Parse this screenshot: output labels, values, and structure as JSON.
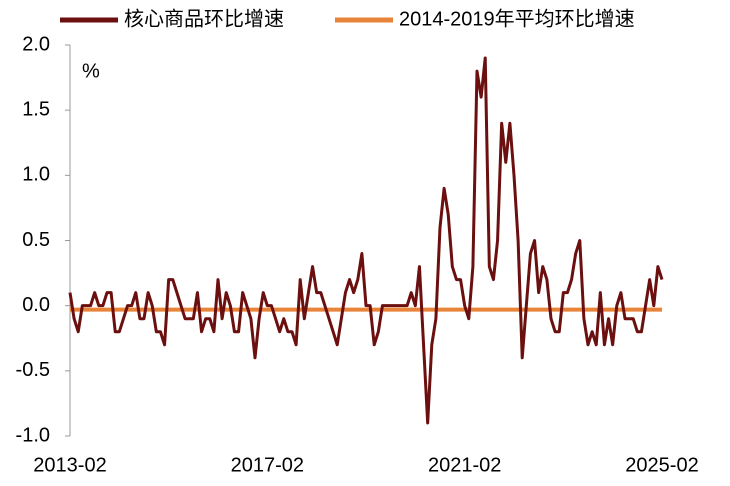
{
  "chart_data": {
    "type": "line",
    "annotation": "%",
    "categories": [
      "2013-02",
      null,
      null,
      null,
      null,
      null,
      null,
      null,
      null,
      null,
      null,
      null,
      null,
      null,
      null,
      null,
      null,
      null,
      null,
      null,
      null,
      null,
      null,
      null,
      null,
      null,
      null,
      null,
      null,
      null,
      null,
      null,
      null,
      null,
      null,
      null,
      null,
      null,
      null,
      null,
      null,
      null,
      null,
      null,
      null,
      null,
      null,
      null,
      "2017-02",
      null,
      null,
      null,
      null,
      null,
      null,
      null,
      null,
      null,
      null,
      null,
      null,
      null,
      null,
      null,
      null,
      null,
      null,
      null,
      null,
      null,
      null,
      null,
      null,
      null,
      null,
      null,
      null,
      null,
      null,
      null,
      null,
      null,
      null,
      null,
      null,
      null,
      null,
      null,
      null,
      null,
      null,
      null,
      null,
      null,
      null,
      null,
      "2021-02",
      null,
      null,
      null,
      null,
      null,
      null,
      null,
      null,
      null,
      null,
      null,
      null,
      null,
      null,
      null,
      null,
      null,
      null,
      null,
      null,
      null,
      null,
      null,
      null,
      null,
      null,
      null,
      null,
      null,
      null,
      null,
      null,
      null,
      null,
      null,
      null,
      null,
      null,
      null,
      null,
      null,
      null,
      null,
      null,
      null,
      null,
      null,
      "2025-02"
    ],
    "series": [
      {
        "name": "核心商品环比增速",
        "color": "#6b0f0f",
        "values": [
          0.1,
          -0.1,
          -0.2,
          0,
          0,
          0,
          0.1,
          0,
          0,
          0.1,
          0.1,
          -0.2,
          -0.2,
          -0.1,
          0,
          0,
          0.1,
          -0.1,
          -0.1,
          0.1,
          0,
          -0.2,
          -0.2,
          -0.3,
          0.2,
          0.2,
          0.1,
          0,
          -0.1,
          -0.1,
          -0.1,
          0.1,
          -0.2,
          -0.1,
          -0.1,
          -0.2,
          0.2,
          -0.1,
          0.1,
          0,
          -0.2,
          -0.2,
          0.1,
          0,
          -0.1,
          -0.4,
          -0.1,
          0.1,
          0,
          0,
          -0.1,
          -0.2,
          -0.1,
          -0.2,
          -0.2,
          -0.3,
          0.2,
          -0.1,
          0.1,
          0.3,
          0.1,
          0.1,
          0,
          -0.1,
          -0.2,
          -0.3,
          -0.1,
          0.1,
          0.2,
          0.1,
          0.2,
          0.4,
          0,
          0,
          -0.3,
          -0.2,
          0,
          0,
          0,
          0,
          0,
          0,
          0,
          0.1,
          0,
          0.3,
          -0.3,
          -0.9,
          -0.3,
          -0.1,
          0.6,
          0.9,
          0.7,
          0.3,
          0.2,
          0.2,
          0,
          -0.1,
          0.3,
          1.8,
          1.6,
          1.9,
          0.3,
          0.2,
          0.5,
          1.4,
          1.1,
          1.4,
          1.0,
          0.5,
          -0.4,
          0,
          0.4,
          0.5,
          0.1,
          0.3,
          0.2,
          -0.1,
          -0.2,
          -0.2,
          0.1,
          0.1,
          0.2,
          0.4,
          0.5,
          -0.1,
          -0.3,
          -0.2,
          -0.3,
          0.1,
          -0.3,
          -0.1,
          -0.3,
          0,
          0.1,
          -0.1,
          -0.1,
          -0.1,
          -0.2,
          -0.2,
          0,
          0.2,
          0,
          0.3,
          0.2
        ]
      },
      {
        "name": "2014-2019年平均环比增速",
        "color": "#e8843a",
        "values": [
          -0.03,
          -0.03,
          -0.03,
          -0.03,
          -0.03,
          -0.03,
          -0.03,
          -0.03,
          -0.03,
          -0.03,
          -0.03,
          -0.03,
          -0.03,
          -0.03,
          -0.03,
          -0.03,
          -0.03,
          -0.03,
          -0.03,
          -0.03,
          -0.03,
          -0.03,
          -0.03,
          -0.03,
          -0.03,
          -0.03,
          -0.03,
          -0.03,
          -0.03,
          -0.03,
          -0.03,
          -0.03,
          -0.03,
          -0.03,
          -0.03,
          -0.03,
          -0.03,
          -0.03,
          -0.03,
          -0.03,
          -0.03,
          -0.03,
          -0.03,
          -0.03,
          -0.03,
          -0.03,
          -0.03,
          -0.03,
          -0.03,
          -0.03,
          -0.03,
          -0.03,
          -0.03,
          -0.03,
          -0.03,
          -0.03,
          -0.03,
          -0.03,
          -0.03,
          -0.03,
          -0.03,
          -0.03,
          -0.03,
          -0.03,
          -0.03,
          -0.03,
          -0.03,
          -0.03,
          -0.03,
          -0.03,
          -0.03,
          -0.03,
          -0.03,
          -0.03,
          -0.03,
          -0.03,
          -0.03,
          -0.03,
          -0.03,
          -0.03,
          -0.03,
          -0.03,
          -0.03,
          -0.03,
          -0.03,
          -0.03,
          -0.03,
          -0.03,
          -0.03,
          -0.03,
          -0.03,
          -0.03,
          -0.03,
          -0.03,
          -0.03,
          -0.03,
          -0.03,
          -0.03,
          -0.03,
          -0.03,
          -0.03,
          -0.03,
          -0.03,
          -0.03,
          -0.03,
          -0.03,
          -0.03,
          -0.03,
          -0.03,
          -0.03,
          -0.03,
          -0.03,
          -0.03,
          -0.03,
          -0.03,
          -0.03,
          -0.03,
          -0.03,
          -0.03,
          -0.03,
          -0.03,
          -0.03,
          -0.03,
          -0.03,
          -0.03,
          -0.03,
          -0.03,
          -0.03,
          -0.03,
          -0.03,
          -0.03,
          -0.03,
          -0.03,
          -0.03,
          -0.03,
          -0.03,
          -0.03,
          -0.03,
          -0.03,
          -0.03,
          -0.03,
          -0.03,
          -0.03,
          -0.03,
          -0.03
        ]
      }
    ],
    "ylim": [
      -1.0,
      2.0
    ],
    "yticks": [
      {
        "value": 2.0,
        "label": "2.0"
      },
      {
        "value": 1.5,
        "label": "1.5"
      },
      {
        "value": 1.0,
        "label": "1.0"
      },
      {
        "value": 0.5,
        "label": "0.5"
      },
      {
        "value": 0.0,
        "label": "0.0"
      },
      {
        "value": -0.5,
        "label": "-0.5"
      },
      {
        "value": -1.0,
        "label": "-1.0"
      }
    ],
    "grid": false,
    "legend": "top"
  }
}
